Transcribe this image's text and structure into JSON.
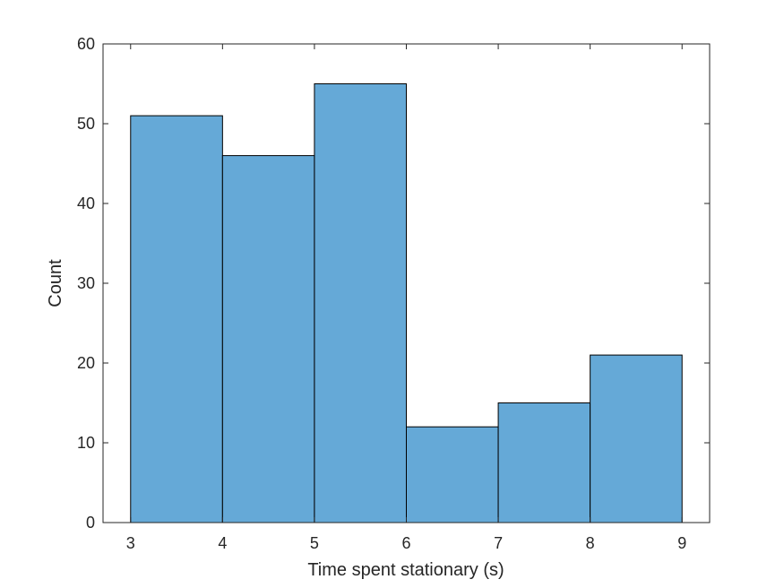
{
  "chart_data": {
    "type": "bar",
    "subtype": "histogram",
    "bin_edges": [
      3,
      4,
      5,
      6,
      7,
      8,
      9
    ],
    "counts": [
      51,
      46,
      55,
      12,
      15,
      21
    ],
    "xlabel": "Time spent stationary (s)",
    "ylabel": "Count",
    "xlim": [
      2.7,
      9.3
    ],
    "ylim": [
      0,
      60
    ],
    "x_ticks": [
      3,
      4,
      5,
      6,
      7,
      8,
      9
    ],
    "y_ticks": [
      0,
      10,
      20,
      30,
      40,
      50,
      60
    ],
    "grid": false,
    "legend": "none",
    "colors": {
      "bar_fill": "#65a9d7",
      "bar_edge": "#000000",
      "axis": "#262626",
      "background": "#ffffff"
    }
  }
}
